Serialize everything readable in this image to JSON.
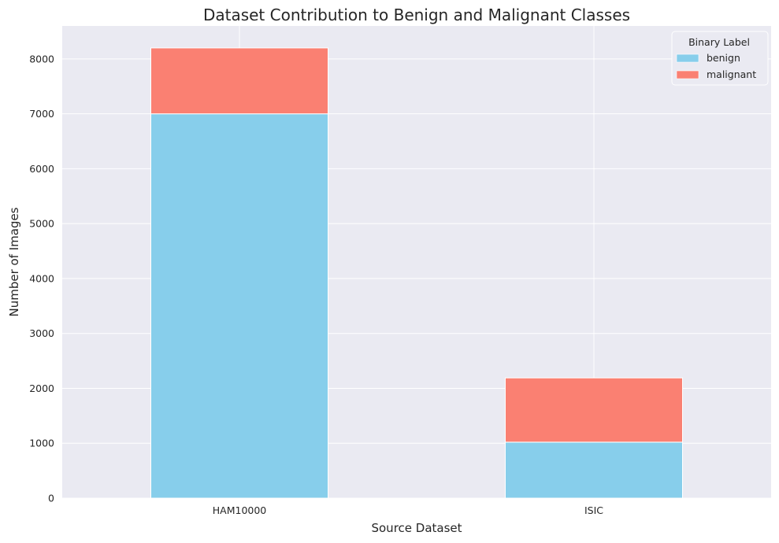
{
  "chart_data": {
    "type": "bar",
    "stacked": true,
    "title": "Dataset Contribution to Benign and Malignant Classes",
    "xlabel": "Source Dataset",
    "ylabel": "Number of Images",
    "categories": [
      "HAM10000",
      "ISIC"
    ],
    "series": [
      {
        "name": "benign",
        "values": [
          7000,
          1020
        ]
      },
      {
        "name": "malignant",
        "values": [
          1200,
          1170
        ]
      }
    ],
    "ylim": [
      0,
      8600
    ],
    "yticks": [
      0,
      1000,
      2000,
      3000,
      4000,
      5000,
      6000,
      7000,
      8000
    ],
    "grid": true,
    "legend": {
      "title": "Binary Label",
      "placement": "top-right"
    },
    "colors": {
      "benign": "#87CEEB",
      "malignant": "#FA8072",
      "plot_background": "#EAEAF2",
      "grid": "#FFFFFF",
      "text": "#262626"
    }
  }
}
